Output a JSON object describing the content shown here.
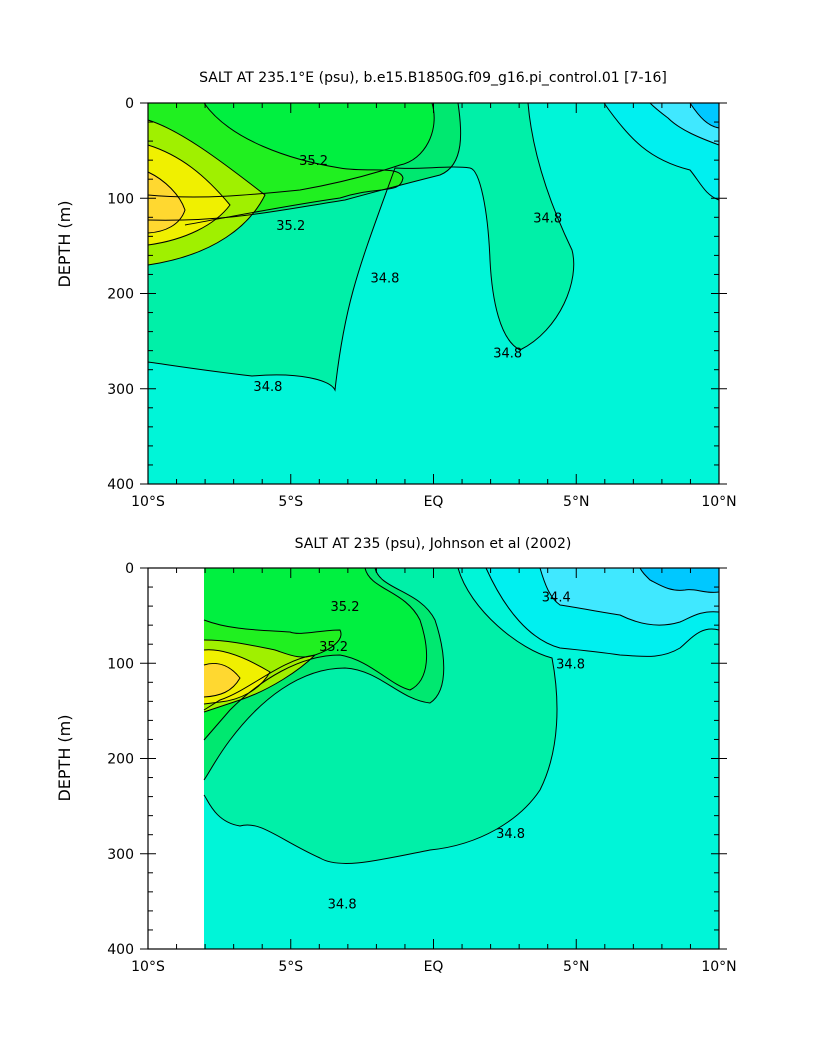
{
  "chart_data": [
    {
      "type": "contour",
      "title": "SALT AT 235.1°E (psu), b.e15.B1850G.f09_g16.pi_control.01 [7-16]",
      "xlabel": "",
      "ylabel": "DEPTH (m)",
      "xlim": [
        -10,
        10
      ],
      "ylim": [
        400,
        0
      ],
      "x_ticks": [
        -10,
        -5,
        0,
        5,
        10
      ],
      "x_tick_labels": [
        "10°S",
        "5°S",
        "EQ",
        "5°N",
        "10°N"
      ],
      "y_ticks": [
        0,
        100,
        200,
        300,
        400
      ],
      "y_tick_labels": [
        "0",
        "100",
        "200",
        "300",
        "400"
      ],
      "data_lon_start": -10,
      "colors": {
        "background": "#00f5d8",
        "c34_8": "#00f0a8",
        "c35_0": "#00e870",
        "c35_2": "#00f040",
        "c35_4": "#20f020",
        "c35_6": "#a0f000",
        "c35_8": "#f0f000",
        "c36_0": "#ffd830",
        "c34_6": "#00f0f0",
        "c34_4": "#40e8ff",
        "c34_2": "#00c8ff"
      },
      "contour_labels": [
        {
          "text": "35.2",
          "lon": -4.2,
          "depth": 60
        },
        {
          "text": "35.2",
          "lon": -5.0,
          "depth": 128
        },
        {
          "text": "34.8",
          "lon": -1.7,
          "depth": 183
        },
        {
          "text": "34.8",
          "lon": 4.0,
          "depth": 120
        },
        {
          "text": "34.8",
          "lon": 2.6,
          "depth": 262
        },
        {
          "text": "34.8",
          "lon": -5.8,
          "depth": 297
        }
      ]
    },
    {
      "type": "contour",
      "title": "SALT AT 235 (psu), Johnson et al (2002)",
      "xlabel": "",
      "ylabel": "DEPTH (m)",
      "xlim": [
        -10,
        10
      ],
      "ylim": [
        400,
        0
      ],
      "x_ticks": [
        -10,
        -5,
        0,
        5,
        10
      ],
      "x_tick_labels": [
        "10°S",
        "5°S",
        "EQ",
        "5°N",
        "10°N"
      ],
      "y_ticks": [
        0,
        100,
        200,
        300,
        400
      ],
      "y_tick_labels": [
        "0",
        "100",
        "200",
        "300",
        "400"
      ],
      "data_lon_start": -8,
      "colors": {
        "background": "#00f5d8",
        "c34_8": "#00f0a8",
        "c35_0": "#00e870",
        "c35_2": "#00f040",
        "c35_4": "#20f020",
        "c35_6": "#a0f000",
        "c35_8": "#f0f000",
        "c36_0": "#ffd830",
        "c34_6": "#00f0f0",
        "c34_4": "#40e8ff",
        "c34_2": "#00c8ff"
      },
      "contour_labels": [
        {
          "text": "35.2",
          "lon": -3.1,
          "depth": 40
        },
        {
          "text": "35.2",
          "lon": -3.5,
          "depth": 82
        },
        {
          "text": "34.4",
          "lon": 4.3,
          "depth": 30
        },
        {
          "text": "34.8",
          "lon": 4.8,
          "depth": 100
        },
        {
          "text": "34.8",
          "lon": 2.7,
          "depth": 278
        },
        {
          "text": "34.8",
          "lon": -3.2,
          "depth": 352
        }
      ]
    }
  ]
}
